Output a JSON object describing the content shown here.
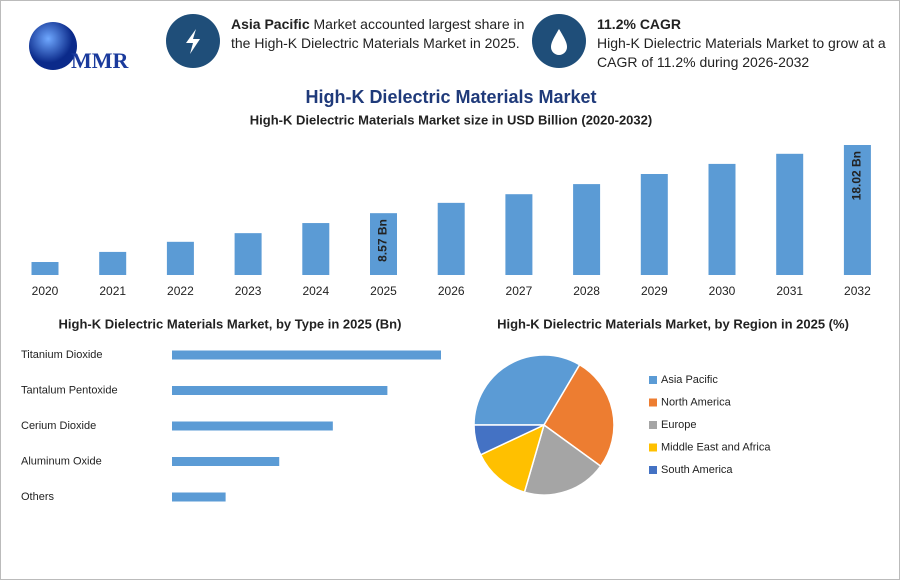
{
  "header": {
    "logo": "MMR",
    "info": [
      {
        "highlight": "Asia Pacific",
        "text": "Market accounted largest share in the High-K Dielectric Materials Market in 2025."
      },
      {
        "highlight": "11.2% CAGR",
        "text": "High-K Dielectric Materials Market to grow at a CAGR of 11.2% during 2026-2032"
      }
    ]
  },
  "title": "High-K Dielectric Materials Market",
  "chart_data": [
    {
      "type": "bar",
      "title": "High-K Dielectric Materials Market size in USD Billion (2020-2032)",
      "categories": [
        "2020",
        "2021",
        "2022",
        "2023",
        "2024",
        "2025",
        "2026",
        "2027",
        "2028",
        "2029",
        "2030",
        "2031",
        "2032"
      ],
      "values": [
        1.8,
        3.2,
        4.6,
        5.8,
        7.2,
        8.57,
        10.0,
        11.2,
        12.6,
        14.0,
        15.4,
        16.8,
        18.02
      ],
      "value_labels": [
        null,
        null,
        null,
        null,
        null,
        "8.57 Bn",
        null,
        null,
        null,
        null,
        null,
        null,
        "18.02 Bn"
      ],
      "color": "#5b9bd5"
    },
    {
      "type": "hbar",
      "title": "High-K Dielectric Materials Market, by Type in 2025 (Bn)",
      "categories": [
        "Titanium Dioxide",
        "Tantalum Pentoxide",
        "Cerium Dioxide",
        "Aluminum Oxide",
        "Others"
      ],
      "values": [
        2.86,
        2.29,
        1.71,
        1.14,
        0.57
      ],
      "color": "#5b9bd5"
    },
    {
      "type": "pie",
      "title": "High-K Dielectric Materials Market, by Region in 2025 (%)",
      "categories": [
        "Asia Pacific",
        "North America",
        "Europe",
        "Middle East and Africa",
        "South America"
      ],
      "values": [
        33.5,
        26.5,
        19.5,
        13.5,
        7.0
      ],
      "colors": [
        "#5b9bd5",
        "#ed7d31",
        "#a5a5a5",
        "#ffc000",
        "#4472c4"
      ],
      "legend": "right"
    }
  ]
}
